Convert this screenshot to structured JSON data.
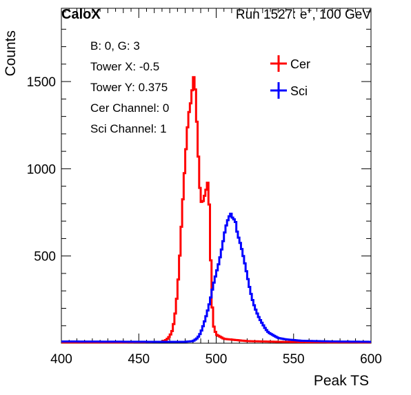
{
  "header": {
    "left": "CaloX",
    "right_prefix": "Run 1527: e",
    "right_sup": "+",
    "right_suffix": ", 100 GeV"
  },
  "info_lines": [
    "B: 0, G: 3",
    "Tower X: -0.5",
    "Tower Y: 0.375",
    "Cer Channel: 0",
    "Sci Channel: 1"
  ],
  "colors": {
    "cer": "#ff0000",
    "sci": "#0000ff",
    "axis": "#000000"
  },
  "chart_data": {
    "type": "line",
    "title": "",
    "xlabel": "Peak TS",
    "ylabel": "Counts",
    "xlim": [
      400,
      600
    ],
    "ylim": [
      0,
      1920
    ],
    "xticks": [
      400,
      450,
      500,
      550,
      600
    ],
    "yticks": [
      500,
      1000,
      1500
    ],
    "grid": false,
    "legend_placement": "top-right",
    "series": [
      {
        "name": "Cer",
        "color": "#ff0000",
        "points": [
          [
            400,
            5
          ],
          [
            440,
            5
          ],
          [
            465,
            8
          ],
          [
            468,
            20
          ],
          [
            470,
            40
          ],
          [
            472,
            80
          ],
          [
            474,
            200
          ],
          [
            476,
            420
          ],
          [
            478,
            750
          ],
          [
            480,
            1050
          ],
          [
            482,
            1300
          ],
          [
            484,
            1400
          ],
          [
            485,
            1500
          ],
          [
            486,
            1550
          ],
          [
            487,
            1360
          ],
          [
            488,
            1180
          ],
          [
            489,
            960
          ],
          [
            490,
            820
          ],
          [
            491,
            800
          ],
          [
            492,
            830
          ],
          [
            493,
            860
          ],
          [
            494,
            900
          ],
          [
            495,
            940
          ],
          [
            496,
            650
          ],
          [
            497,
            300
          ],
          [
            498,
            110
          ],
          [
            500,
            50
          ],
          [
            505,
            25
          ],
          [
            520,
            12
          ],
          [
            540,
            8
          ],
          [
            560,
            6
          ],
          [
            600,
            5
          ]
        ]
      },
      {
        "name": "Sci",
        "color": "#0000ff",
        "points": [
          [
            400,
            10
          ],
          [
            460,
            8
          ],
          [
            480,
            8
          ],
          [
            485,
            12
          ],
          [
            488,
            30
          ],
          [
            490,
            60
          ],
          [
            492,
            110
          ],
          [
            494,
            170
          ],
          [
            496,
            240
          ],
          [
            498,
            330
          ],
          [
            500,
            400
          ],
          [
            502,
            470
          ],
          [
            504,
            560
          ],
          [
            506,
            660
          ],
          [
            508,
            720
          ],
          [
            510,
            750
          ],
          [
            511,
            690
          ],
          [
            512,
            730
          ],
          [
            513,
            660
          ],
          [
            514,
            620
          ],
          [
            516,
            560
          ],
          [
            518,
            480
          ],
          [
            520,
            390
          ],
          [
            522,
            300
          ],
          [
            524,
            230
          ],
          [
            526,
            180
          ],
          [
            528,
            140
          ],
          [
            530,
            110
          ],
          [
            532,
            80
          ],
          [
            534,
            60
          ],
          [
            536,
            50
          ],
          [
            538,
            40
          ],
          [
            540,
            30
          ],
          [
            545,
            22
          ],
          [
            555,
            14
          ],
          [
            575,
            10
          ],
          [
            600,
            8
          ]
        ]
      }
    ]
  }
}
